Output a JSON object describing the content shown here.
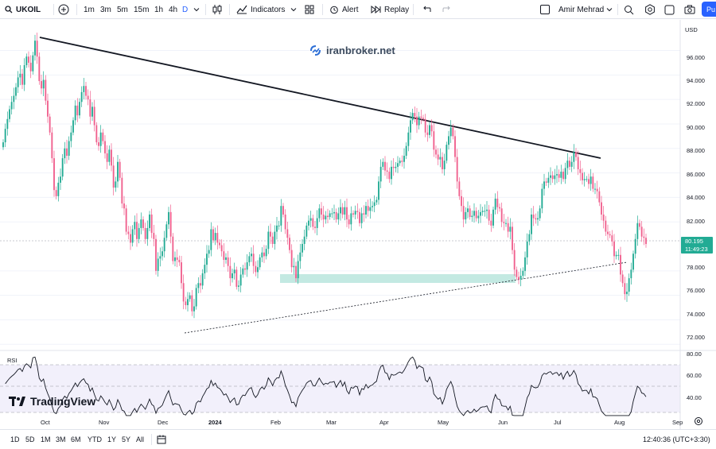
{
  "toolbar": {
    "symbol": "UKOIL",
    "intervals": [
      "1m",
      "3m",
      "5m",
      "15m",
      "1h",
      "4h",
      "D"
    ],
    "active_interval": "D",
    "indicators_label": "Indicators",
    "alert_label": "Alert",
    "replay_label": "Replay",
    "user_name": "Amir Mehrad",
    "publish_label": "Pu"
  },
  "chart": {
    "currency": "USD",
    "watermark": "iranbroker.net",
    "last_price": "80.195",
    "countdown": "11:49:23",
    "rsi_label": "RSI",
    "brand": "TradingView",
    "up_color": "#22ab94",
    "down_color": "#f0608e",
    "y_ticks": [
      "96.000",
      "94.000",
      "92.000",
      "90.000",
      "88.000",
      "86.000",
      "84.000",
      "82.000",
      "78.000",
      "76.000",
      "74.000",
      "72.000"
    ],
    "rsi_ticks": [
      "80.00",
      "60.00",
      "40.00"
    ],
    "x_ticks": [
      "Oct",
      "Nov",
      "Dec",
      "2024",
      "Feb",
      "Mar",
      "Apr",
      "May",
      "Jun",
      "Jul",
      "Aug",
      "Sep"
    ]
  },
  "chart_data": {
    "type": "candlestick",
    "ylim": [
      71.5,
      98.5
    ],
    "closes": [
      88.5,
      89.6,
      90.4,
      91.2,
      91.8,
      92.3,
      93.0,
      93.8,
      94.1,
      93.2,
      94.8,
      95.5,
      95.0,
      94.3,
      95.6,
      96.8,
      95.5,
      93.5,
      92.9,
      93.6,
      91.9,
      90.6,
      89.3,
      87.2,
      84.6,
      84.1,
      85.2,
      85.7,
      87.2,
      88.0,
      87.4,
      88.6,
      89.3,
      90.3,
      91.5,
      90.7,
      91.8,
      92.6,
      93.1,
      92.3,
      92.0,
      90.6,
      91.4,
      89.9,
      88.5,
      88.2,
      89.3,
      88.6,
      87.6,
      86.9,
      87.9,
      86.6,
      84.8,
      85.3,
      86.9,
      85.6,
      83.5,
      83.1,
      81.2,
      81.0,
      80.3,
      81.4,
      82.0,
      80.6,
      81.5,
      82.2,
      81.5,
      80.6,
      81.5,
      82.6,
      81.1,
      80.6,
      78.0,
      79.0,
      79.2,
      79.6,
      80.7,
      81.8,
      82.8,
      80.8,
      78.8,
      79.1,
      78.9,
      78.7,
      77.0,
      75.5,
      75.2,
      75.7,
      76.0,
      74.7,
      75.1,
      76.6,
      77.0,
      76.8,
      77.8,
      78.5,
      79.4,
      79.7,
      81.4,
      80.5,
      81.1,
      80.3,
      80.1,
      79.6,
      78.9,
      79.1,
      78.4,
      77.4,
      77.8,
      78.1,
      76.7,
      76.8,
      77.7,
      78.2,
      78.1,
      78.7,
      79.2,
      79.4,
      78.4,
      77.9,
      78.3,
      79.1,
      79.5,
      79.2,
      79.8,
      81.2,
      80.8,
      80.2,
      81.2,
      81.7,
      81.7,
      83.3,
      82.6,
      81.4,
      80.7,
      79.7,
      78.3,
      78.4,
      77.4,
      78.8,
      79.5,
      80.2,
      80.8,
      81.7,
      82.1,
      82.3,
      81.6,
      81.5,
      82.3,
      83.1,
      82.6,
      82.2,
      82.5,
      82.4,
      82.7,
      82.7,
      82.8,
      82.2,
      82.7,
      83.2,
      82.6,
      83.2,
      82.2,
      81.8,
      82.7,
      82.6,
      82.9,
      82.8,
      81.9,
      82.7,
      82.6,
      83.3,
      82.9,
      83.2,
      83.3,
      83.6,
      83.8,
      85.3,
      86.5,
      86.9,
      86.2,
      86.1,
      85.5,
      86.5,
      86.4,
      86.5,
      86.8,
      87.0,
      86.9,
      87.4,
      88.2,
      89.3,
      90.3,
      90.9,
      90.6,
      89.9,
      90.6,
      90.5,
      90.4,
      89.3,
      89.1,
      89.9,
      89.4,
      87.9,
      87.5,
      87.1,
      87.3,
      86.3,
      87.0,
      88.3,
      89.0,
      89.7,
      89.0,
      87.3,
      85.3,
      84.1,
      83.3,
      82.2,
      82.8,
      83.1,
      82.4,
      82.5,
      82.9,
      82.3,
      82.5,
      82.8,
      82.9,
      82.9,
      83.0,
      82.1,
      81.7,
      83.0,
      83.9,
      83.2,
      83.1,
      82.0,
      81.9,
      81.9,
      81.2,
      81.6,
      79.7,
      78.1,
      77.5,
      77.3,
      77.6,
      78.0,
      79.1,
      80.4,
      81.0,
      82.6,
      82.3,
      82.2,
      82.3,
      83.1,
      84.7,
      85.3,
      85.2,
      85.6,
      85.8,
      85.5,
      85.8,
      85.9,
      85.6,
      86.1,
      85.5,
      86.4,
      87.0,
      86.5,
      86.9,
      87.7,
      87.3,
      86.3,
      86.0,
      85.4,
      85.5,
      85.5,
      85.1,
      85.7,
      84.7,
      84.7,
      84.5,
      83.6,
      82.6,
      82.1,
      81.2,
      81.0,
      80.9,
      80.4,
      79.2,
      79.3,
      79.3,
      77.7,
      77.0,
      76.1,
      76.3,
      77.4,
      78.1,
      79.4,
      80.6,
      81.9,
      81.6,
      80.8,
      80.7,
      80.195
    ]
  }
}
